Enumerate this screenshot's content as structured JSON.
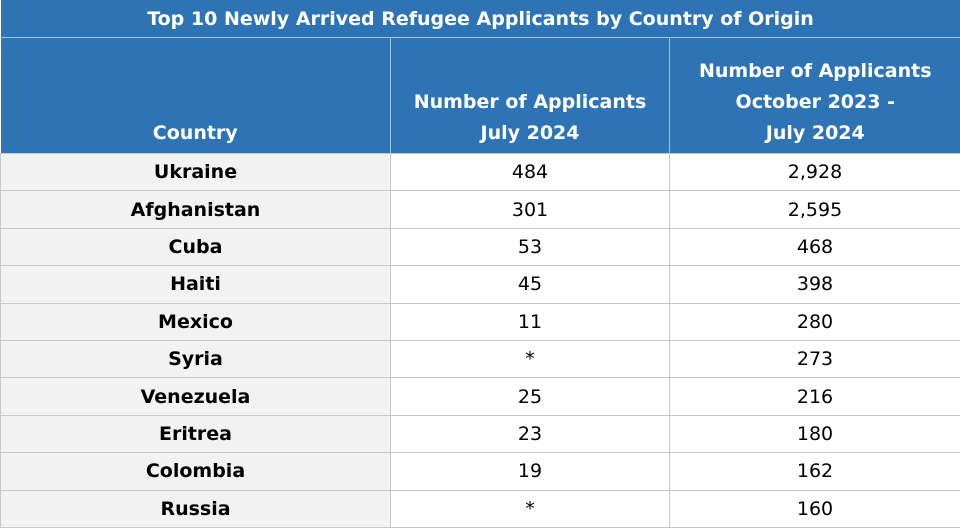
{
  "title": "Top 10 Newly Arrived Refugee Applicants by Country of Origin",
  "headers": [
    "Country",
    "Number of Applicants\nJuly 2024",
    "Number of Applicants\nOctober 2023 -\nJuly 2024"
  ],
  "header_lines": {
    "col1": [
      "Country"
    ],
    "col2": [
      "Number of Applicants",
      "July 2024"
    ],
    "col3": [
      "Number of Applicants",
      "October 2023 -",
      "July 2024"
    ]
  },
  "rows": [
    {
      "country": "Ukraine",
      "july_2024": "484",
      "oct2023_jul2024": "2,928"
    },
    {
      "country": "Afghanistan",
      "july_2024": "301",
      "oct2023_jul2024": "2,595"
    },
    {
      "country": "Cuba",
      "july_2024": "53",
      "oct2023_jul2024": "468"
    },
    {
      "country": "Haiti",
      "july_2024": "45",
      "oct2023_jul2024": "398"
    },
    {
      "country": "Mexico",
      "july_2024": "11",
      "oct2023_jul2024": "280"
    },
    {
      "country": "Syria",
      "july_2024": "*",
      "oct2023_jul2024": "273"
    },
    {
      "country": "Venezuela",
      "july_2024": "25",
      "oct2023_jul2024": "216"
    },
    {
      "country": "Eritrea",
      "july_2024": "23",
      "oct2023_jul2024": "180"
    },
    {
      "country": "Colombia",
      "july_2024": "19",
      "oct2023_jul2024": "162"
    },
    {
      "country": "Russia",
      "july_2024": "*",
      "oct2023_jul2024": "160"
    }
  ],
  "colors": {
    "header_bg": "#2e74b5",
    "header_text": "#ffffff",
    "country_bg": "#f2f2f2"
  }
}
